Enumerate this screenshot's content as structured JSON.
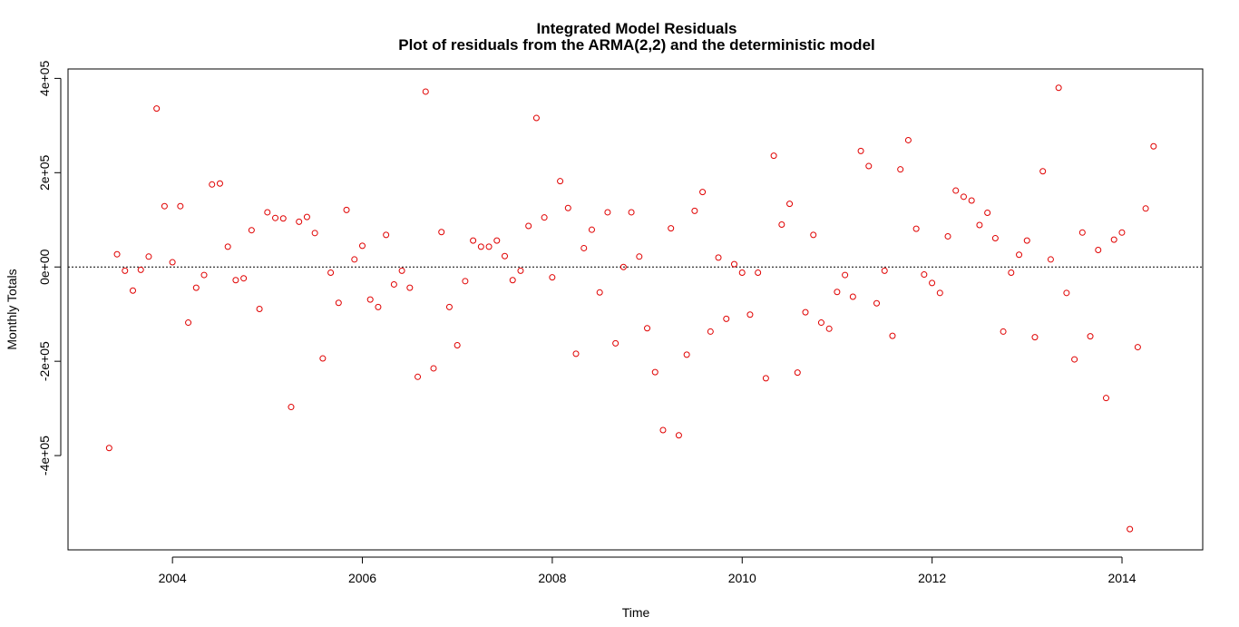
{
  "chart_data": {
    "type": "scatter",
    "title": "Integrated Model Residuals",
    "subtitle": "Plot of residuals from the ARMA(2,2) and the deterministic model",
    "xlabel": "Time",
    "ylabel": "Monthly Totals",
    "xlim": [
      2002.9,
      2014.85
    ],
    "ylim": [
      -600000,
      420000
    ],
    "x_ticks": [
      2004,
      2006,
      2008,
      2010,
      2012,
      2014
    ],
    "x_tick_labels": [
      "2004",
      "2006",
      "2008",
      "2010",
      "2012",
      "2014"
    ],
    "y_ticks": [
      -400000,
      -200000,
      0,
      200000,
      400000
    ],
    "y_tick_labels": [
      "-4e+05",
      "-2e+05",
      "0e+00",
      "2e+05",
      "4e+05"
    ],
    "reference_line": {
      "y": 0,
      "style": "dotted",
      "color": "#000000"
    },
    "grid": false,
    "legend": false,
    "point_color": "#e00000",
    "series": [
      {
        "x_start": 2003.333,
        "x_step": 0.08333,
        "values": [
          -384000,
          27000,
          -8000,
          -50000,
          -6000,
          22000,
          336000,
          129000,
          10000,
          129000,
          -118000,
          -44000,
          -17000,
          175000,
          177000,
          43000,
          -28000,
          -24000,
          78000,
          -89000,
          116000,
          104000,
          103000,
          -297000,
          96000,
          106000,
          72000,
          -194000,
          -12000,
          -76000,
          121000,
          16000,
          45000,
          -69000,
          -85000,
          68000,
          -37000,
          -8000,
          -44000,
          -233000,
          372000,
          -215000,
          74000,
          -85000,
          -166000,
          -30000,
          56000,
          43000,
          43000,
          56000,
          23000,
          -28000,
          -8000,
          87000,
          316000,
          105000,
          -22000,
          182000,
          125000,
          -184000,
          40000,
          79000,
          -54000,
          116000,
          -162000,
          0,
          116000,
          22000,
          -130000,
          -223000,
          -346000,
          82000,
          -357000,
          -186000,
          119000,
          159000,
          -137000,
          20000,
          -110000,
          6000,
          -12000,
          -101000,
          -12000,
          -236000,
          236000,
          90000,
          134000,
          -224000,
          -96000,
          68000,
          -118000,
          -131000,
          -53000,
          -17000,
          -63000,
          246000,
          214000,
          -77000,
          -8000,
          -146000,
          207000,
          269000,
          81000,
          -16000,
          -34000,
          -55000,
          65000,
          162000,
          149000,
          141000,
          89000,
          115000,
          61000,
          -137000,
          -12000,
          26000,
          56000,
          -149000,
          203000,
          16000,
          380000,
          -55000,
          -196000,
          73000,
          -147000,
          36000,
          -278000,
          58000,
          73000,
          -556000,
          -170000,
          124000,
          256000
        ]
      }
    ]
  }
}
